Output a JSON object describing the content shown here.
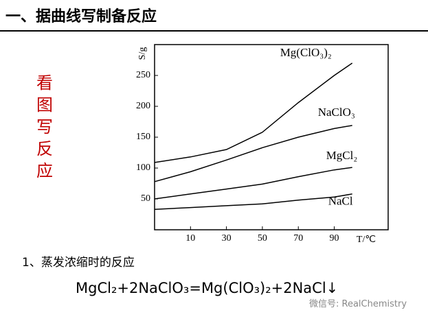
{
  "header": {
    "title": "一、据曲线写制备反应"
  },
  "side_text": "看图写反应",
  "note": "1、蒸发浓缩时的反应",
  "equation": "MgCl₂+2NaClO₃=Mg(ClO₃)₂+2NaCl↓",
  "watermark": "微信号: RealChemistry",
  "chart_data": {
    "type": "line",
    "x_label": "T/℃",
    "y_label": "S/g",
    "x": [
      -10,
      10,
      30,
      50,
      70,
      90,
      100
    ],
    "series": [
      {
        "name": "Mg(ClO₃)₂",
        "color": "#000000",
        "values": [
          109,
          118,
          130,
          158,
          206,
          250,
          270
        ]
      },
      {
        "name": "NaClO₃",
        "color": "#000000",
        "values": [
          78,
          94,
          113,
          133,
          150,
          164,
          169
        ]
      },
      {
        "name": "MgCl₂",
        "color": "#000000",
        "values": [
          50,
          58,
          66,
          74,
          86,
          97,
          101
        ]
      },
      {
        "name": "NaCl",
        "color": "#000000",
        "values": [
          33,
          36,
          39,
          42,
          48,
          53,
          58
        ]
      }
    ],
    "xlim": [
      -10,
      120
    ],
    "xticks": [
      10,
      30,
      50,
      70,
      90
    ],
    "ylim": [
      0,
      300
    ],
    "yticks": [
      50,
      100,
      150,
      200,
      250
    ]
  }
}
